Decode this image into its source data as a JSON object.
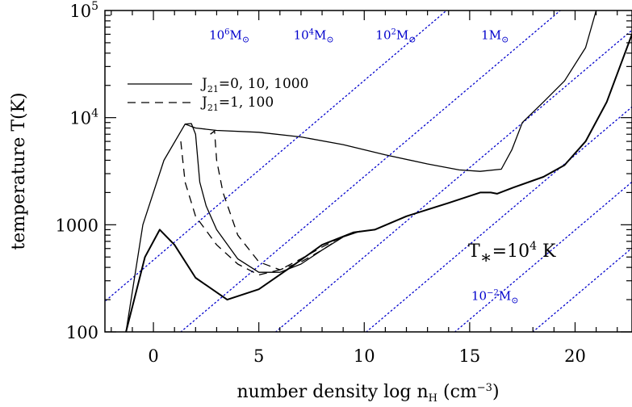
{
  "chart_data": {
    "type": "line",
    "title": "",
    "xlabel": "number density log n",
    "xlabel_sub": "H",
    "xlabel_unit": " (cm",
    "xlabel_unit_sup": "−3",
    "xlabel_unit_close": ")",
    "ylabel": "temperature T(K)",
    "xlim": [
      -2.3,
      22.7
    ],
    "ylim": [
      100,
      100000
    ],
    "yscale": "log",
    "x_ticks": [
      {
        "value": 0,
        "label": "0"
      },
      {
        "value": 5,
        "label": "5"
      },
      {
        "value": 10,
        "label": "10"
      },
      {
        "value": 15,
        "label": "15"
      },
      {
        "value": 20,
        "label": "20"
      }
    ],
    "y_ticks": [
      {
        "value": 100,
        "label": "100"
      },
      {
        "value": 1000,
        "label": "1000"
      },
      {
        "value": 10000,
        "base": "10",
        "exp": "4"
      },
      {
        "value": 100000,
        "base": "10",
        "exp": "5"
      }
    ],
    "legend": {
      "placement": "top-left",
      "entries": [
        {
          "style": "solid",
          "text": "J",
          "sub": "21",
          "rest": "=0, 10, 1000"
        },
        {
          "style": "dashed",
          "text": "J",
          "sub": "21",
          "rest": "=1, 100"
        }
      ]
    },
    "annotation": {
      "text": "T",
      "sub": "∗",
      "rest": "=10",
      "sup": "4",
      "unit": " K"
    },
    "jeans_mass_lines": {
      "color": "#0000cc",
      "style": "dotted",
      "lines": [
        {
          "x_at_T100": -4.0,
          "x_at_T1e5": 13.9
        },
        {
          "x_at_T100": 1.3,
          "x_at_T1e5": 19.3
        },
        {
          "x_at_T100": 5.8,
          "x_at_T1e5": 23.8
        },
        {
          "x_at_T100": 10.1,
          "x_at_T1e5": 28.1
        },
        {
          "x_at_T100": 14.3,
          "x_at_T1e5": 32.3
        },
        {
          "x_at_T100": 18.0,
          "x_at_T1e5": 36.0
        }
      ],
      "labels": [
        {
          "base": "10",
          "exp": "6",
          "unit": "M",
          "sub": "⊙",
          "x": 3.6,
          "T": 60000
        },
        {
          "base": "10",
          "exp": "4",
          "unit": "M",
          "sub": "⊙",
          "x": 7.6,
          "T": 60000
        },
        {
          "base": "10",
          "exp": "2",
          "unit": "M",
          "sub": "⊙",
          "x": 11.5,
          "T": 60000
        },
        {
          "base": "1",
          "exp": "",
          "unit": "M",
          "sub": "⊙",
          "x": 16.2,
          "T": 60000
        },
        {
          "base": "10",
          "exp": "−2",
          "unit": "M",
          "sub": "⊙",
          "x": 16.2,
          "T": 220
        }
      ]
    },
    "series": [
      {
        "name": "J21=0",
        "style": "solid",
        "width": 1.3,
        "x": [
          -1.3,
          -0.5,
          0.5,
          1.5,
          2.0,
          3.0,
          5.0,
          7.0,
          9.0,
          11.0,
          13.0,
          14.5,
          15.5,
          16.5,
          17.0,
          17.5,
          18.5,
          19.5,
          20.5,
          21.0
        ],
        "y": [
          100,
          1000,
          4000,
          8700,
          8000,
          7600,
          7300,
          6600,
          5600,
          4500,
          3700,
          3250,
          3150,
          3300,
          5000,
          9000,
          14000,
          22000,
          45000,
          100000
        ]
      },
      {
        "name": "J21=10",
        "style": "solid",
        "width": 1.3,
        "x": [
          1.5,
          1.8,
          2.0,
          2.2,
          2.5,
          3.0,
          4.0,
          5.0,
          6.0,
          7.0,
          8.0,
          9.0,
          9.8
        ],
        "y": [
          8700,
          8800,
          7000,
          2500,
          1500,
          900,
          480,
          360,
          360,
          430,
          580,
          770,
          870
        ]
      },
      {
        "name": "J21=1000",
        "style": "solid",
        "width": 2.0,
        "x": [
          -1.3,
          -0.4,
          0.3,
          1.0,
          2.0,
          3.5,
          5.0,
          6.5,
          8.0,
          9.5,
          10.5,
          12.0,
          14.0,
          15.5,
          16.0,
          16.3,
          17.0,
          18.5,
          19.5,
          20.5,
          21.5,
          22.7
        ],
        "y": [
          100,
          500,
          900,
          650,
          320,
          200,
          250,
          400,
          650,
          850,
          900,
          1200,
          1600,
          2000,
          2000,
          1950,
          2200,
          2800,
          3600,
          6000,
          14000,
          60000
        ]
      },
      {
        "name": "J21=1",
        "style": "dashed",
        "width": 1.3,
        "x": [
          1.3,
          1.5,
          2.0,
          3.0,
          4.0,
          5.0,
          6.0,
          7.0,
          8.0,
          9.0,
          9.8
        ],
        "y": [
          6000,
          2500,
          1200,
          650,
          430,
          340,
          380,
          480,
          620,
          780,
          870
        ]
      },
      {
        "name": "J21=100",
        "style": "dashed",
        "width": 1.3,
        "x": [
          2.7,
          2.9,
          3.0,
          3.3,
          4.0,
          5.0,
          6.0,
          7.0,
          8.0,
          9.0
        ],
        "y": [
          7000,
          7500,
          4000,
          2000,
          800,
          450,
          380,
          450,
          580,
          780
        ]
      }
    ]
  }
}
